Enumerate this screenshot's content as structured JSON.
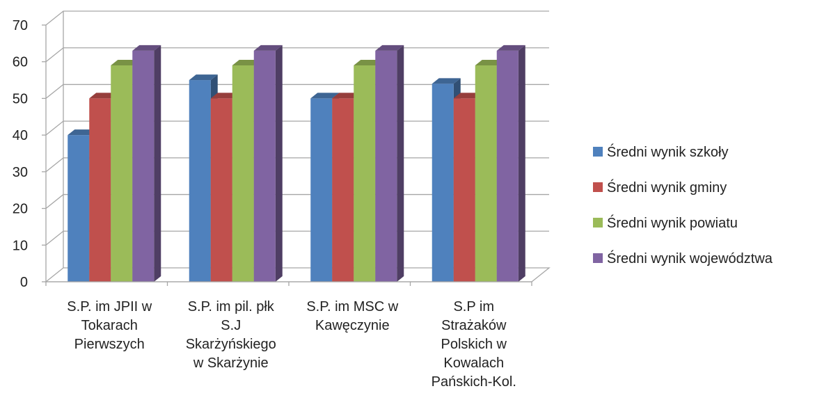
{
  "chart_data": {
    "type": "bar",
    "categories": [
      [
        "S.P. im JPII w",
        "Tokarach",
        "Pierwszych"
      ],
      [
        "S.P. im pil. płk",
        "S.J",
        "Skarżyńskiego",
        "w Skarżynie"
      ],
      [
        "S.P. im MSC w",
        "Kawęczynie"
      ],
      [
        "S.P im",
        "Strażaków",
        "Polskich w",
        "Kowalach",
        "Pańskich-Kol."
      ]
    ],
    "series": [
      {
        "name": "Średni wynik szkoły",
        "color": "#4f81bd",
        "values": [
          40,
          55,
          50,
          54
        ]
      },
      {
        "name": "Średni wynik gminy",
        "color": "#c0504d",
        "values": [
          50,
          50,
          50,
          50
        ]
      },
      {
        "name": "Średni wynik powiatu",
        "color": "#9bbb59",
        "values": [
          59,
          59,
          59,
          59
        ]
      },
      {
        "name": "Średni wynik województwa",
        "color": "#8064a2",
        "values": [
          63,
          63,
          63,
          63
        ]
      }
    ],
    "yticks": [
      "0",
      "10",
      "20",
      "30",
      "40",
      "50",
      "60",
      "70"
    ],
    "ylim": [
      0,
      70
    ],
    "grid": true,
    "legend_position": "right",
    "title": "",
    "xlabel": "",
    "ylabel": ""
  }
}
